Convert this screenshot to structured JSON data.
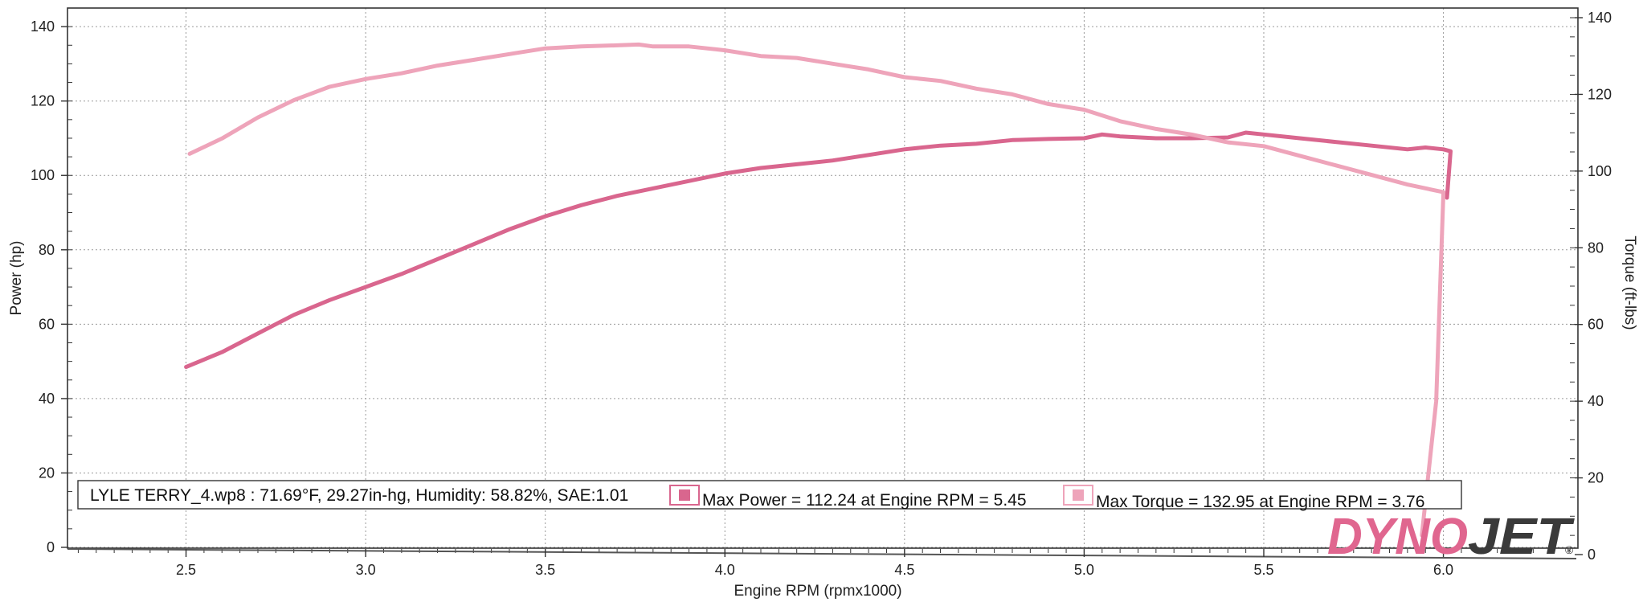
{
  "chart_data": {
    "type": "line",
    "title": "",
    "xlabel": "Engine RPM (rpmx1000)",
    "ylabel": "Power (hp)",
    "y2label": "Torque (ft-lbs)",
    "xlim": [
      2.17,
      6.37
    ],
    "ylim": [
      0,
      145
    ],
    "y2lim": [
      0,
      140
    ],
    "x_ticks": [
      "2.5",
      "3.0",
      "3.5",
      "4.0",
      "4.5",
      "5.0",
      "5.5",
      "6.0"
    ],
    "y_ticks": [
      "0",
      "20",
      "40",
      "60",
      "80",
      "100",
      "120",
      "140"
    ],
    "y2_ticks": [
      "0",
      "20",
      "40",
      "60",
      "80",
      "100",
      "120",
      "140"
    ],
    "grid": true,
    "series": [
      {
        "key": "power",
        "axis": "left",
        "color": "#d9668e",
        "x": [
          2.5,
          2.6,
          2.7,
          2.8,
          2.9,
          3.0,
          3.1,
          3.2,
          3.3,
          3.4,
          3.5,
          3.6,
          3.7,
          3.8,
          3.9,
          4.0,
          4.1,
          4.2,
          4.3,
          4.4,
          4.5,
          4.6,
          4.7,
          4.8,
          4.9,
          5.0,
          5.05,
          5.1,
          5.2,
          5.3,
          5.4,
          5.45,
          5.5,
          5.6,
          5.7,
          5.8,
          5.9,
          5.95,
          6.0,
          6.02,
          6.01
        ],
        "y": [
          48.5,
          52.5,
          57.5,
          62.5,
          66.5,
          70.0,
          73.5,
          77.5,
          81.5,
          85.5,
          89.0,
          92.0,
          94.5,
          96.5,
          98.5,
          100.5,
          102.0,
          103.0,
          104.0,
          105.5,
          107.0,
          108.0,
          108.5,
          109.5,
          109.8,
          110.0,
          111.0,
          110.5,
          110.0,
          110.0,
          110.2,
          111.5,
          111.0,
          110.0,
          109.0,
          108.0,
          107.0,
          107.5,
          107.0,
          106.5,
          94.0
        ]
      },
      {
        "key": "torque",
        "axis": "right",
        "color": "#eea4ba",
        "x": [
          2.51,
          2.6,
          2.7,
          2.8,
          2.9,
          3.0,
          3.1,
          3.2,
          3.3,
          3.4,
          3.5,
          3.6,
          3.7,
          3.76,
          3.8,
          3.9,
          4.0,
          4.1,
          4.2,
          4.3,
          4.4,
          4.5,
          4.6,
          4.7,
          4.8,
          4.9,
          5.0,
          5.1,
          5.2,
          5.3,
          5.4,
          5.5,
          5.6,
          5.7,
          5.8,
          5.9,
          6.0,
          5.98,
          5.94
        ],
        "y": [
          104.5,
          108.5,
          114.0,
          118.5,
          122.0,
          124.0,
          125.5,
          127.5,
          129.0,
          130.5,
          132.0,
          132.5,
          132.8,
          133.0,
          132.5,
          132.5,
          131.5,
          130.0,
          129.5,
          128.0,
          126.5,
          124.5,
          123.5,
          121.5,
          120.0,
          117.5,
          116.0,
          113.0,
          111.0,
          109.5,
          107.5,
          106.5,
          104.0,
          101.5,
          99.0,
          96.5,
          94.5,
          40.0,
          5.0
        ]
      }
    ],
    "legend": {
      "run_info": "LYLE TERRY_4.wp8 : 71.69°F, 29.27in-hg, Humidity: 58.82%, SAE:1.01",
      "max_power": "Max Power = 112.24 at Engine RPM = 5.45",
      "max_torque": "Max Torque = 132.95 at Engine RPM = 3.76",
      "placement": "bottom"
    },
    "brand": {
      "part1": "DYNO",
      "part2": "JET",
      "mark": "®",
      "color1": "#e0668f",
      "color2": "#3a3a3a"
    }
  }
}
